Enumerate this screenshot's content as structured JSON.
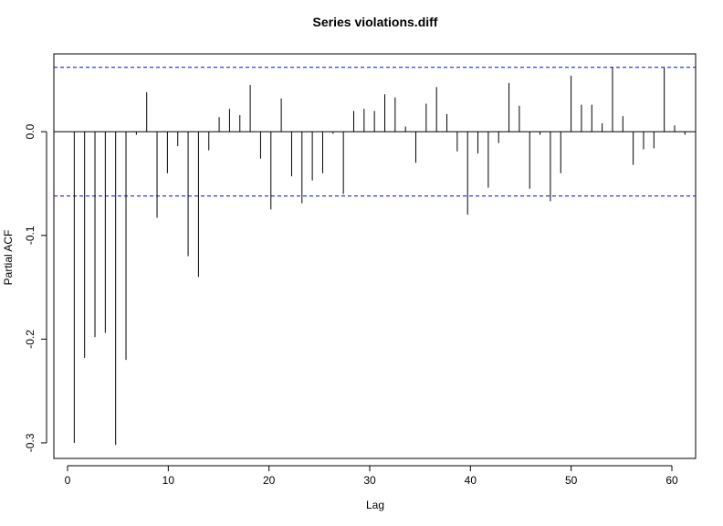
{
  "chart_data": {
    "type": "bar",
    "title": "Series  violations.diff",
    "xlabel": "Lag",
    "ylabel": "Partial ACF",
    "xlim": [
      0,
      62
    ],
    "ylim": [
      -0.315,
      0.075
    ],
    "x_ticks": [
      {
        "value": 0,
        "label": "0"
      },
      {
        "value": 10,
        "label": "10"
      },
      {
        "value": 20,
        "label": "20"
      },
      {
        "value": 30,
        "label": "30"
      },
      {
        "value": 40,
        "label": "40"
      },
      {
        "value": 50,
        "label": "50"
      },
      {
        "value": 60,
        "label": "60"
      }
    ],
    "y_ticks": [
      {
        "value": -0.3,
        "label": "-0.3"
      },
      {
        "value": -0.2,
        "label": "-0.2"
      },
      {
        "value": -0.1,
        "label": "-0.1"
      },
      {
        "value": 0.0,
        "label": "0.0"
      }
    ],
    "confidence_bound": 0.062,
    "confidence_color": "#0000ff",
    "spike_color": "#000000",
    "lags": [
      1,
      2,
      3,
      4,
      5,
      6,
      7,
      8,
      9,
      10,
      11,
      12,
      13,
      14,
      15,
      16,
      17,
      18,
      19,
      20,
      21,
      22,
      23,
      24,
      25,
      26,
      27,
      28,
      29,
      30,
      31,
      32,
      33,
      34,
      35,
      36,
      37,
      38,
      39,
      40,
      41,
      42,
      43,
      44,
      45,
      46,
      47,
      48,
      49,
      50,
      51,
      52,
      53,
      54,
      55,
      56,
      57,
      58,
      59,
      60
    ],
    "values": [
      -0.3,
      -0.218,
      -0.198,
      -0.194,
      -0.302,
      -0.22,
      -0.003,
      0.038,
      -0.083,
      -0.04,
      -0.014,
      -0.12,
      -0.14,
      -0.018,
      0.014,
      0.022,
      0.016,
      0.045,
      -0.026,
      -0.075,
      0.032,
      -0.043,
      -0.069,
      -0.047,
      -0.04,
      -0.002,
      -0.06,
      0.02,
      0.022,
      0.02,
      0.036,
      0.033,
      0.005,
      -0.03,
      0.027,
      0.043,
      0.017,
      -0.019,
      -0.08,
      -0.021,
      -0.054,
      -0.011,
      0.047,
      0.025,
      -0.055,
      -0.003,
      -0.067,
      -0.04,
      0.054,
      0.026,
      0.026,
      0.008,
      0.062,
      0.015,
      -0.032,
      -0.017,
      -0.016,
      0.062,
      0.006,
      -0.003
    ]
  }
}
